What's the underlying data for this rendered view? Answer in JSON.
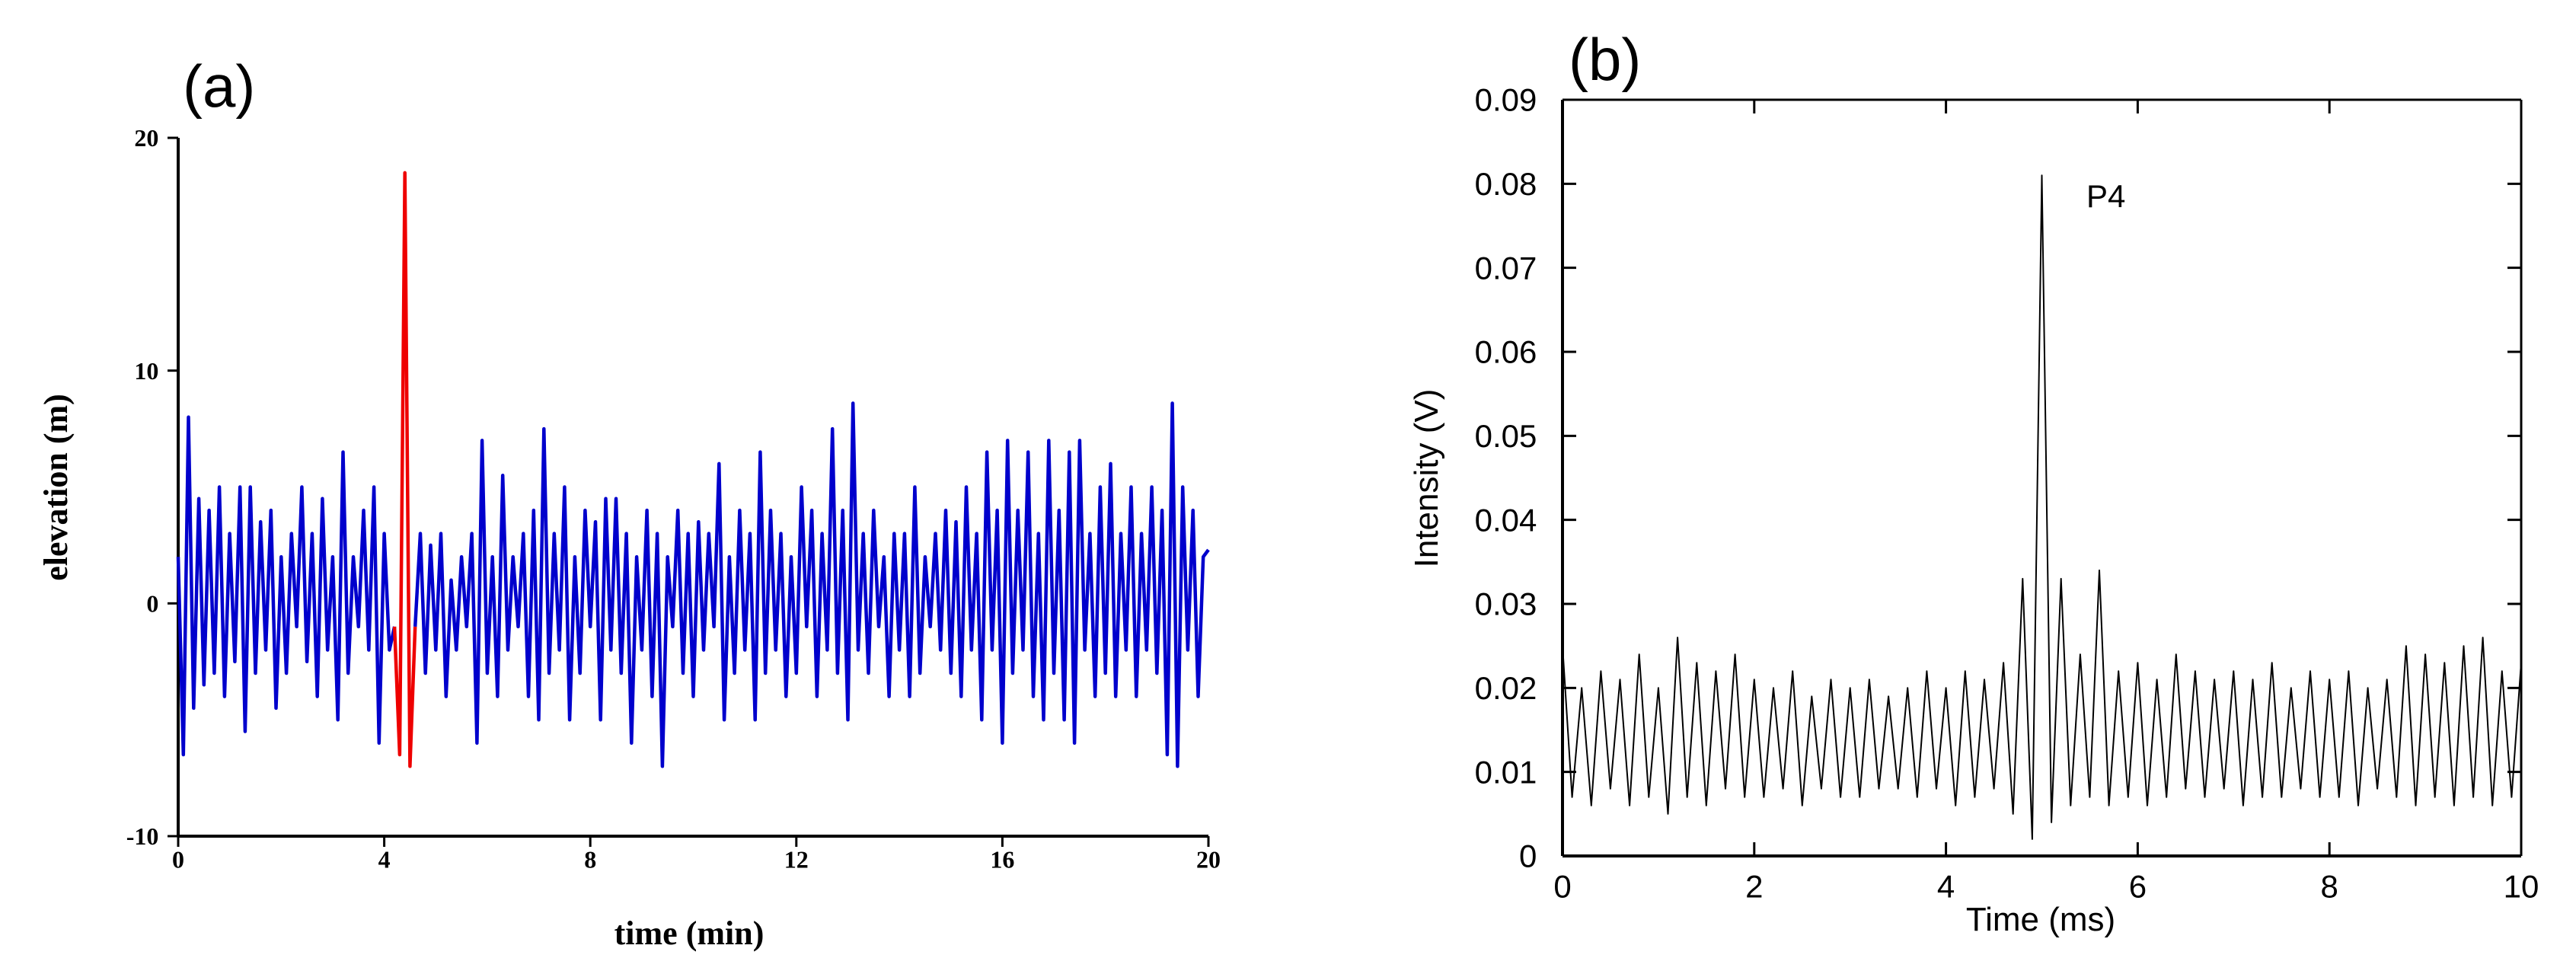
{
  "chart_data": [
    {
      "type": "line",
      "panel_label": "(a)",
      "xlabel": "time (min)",
      "ylabel": "elevation (m)",
      "xlim": [
        0,
        20
      ],
      "xticks": [
        0,
        4,
        8,
        12,
        16,
        20
      ],
      "ylim": [
        -10,
        20
      ],
      "yticks": [
        -10,
        0,
        10,
        20
      ],
      "series": [
        {
          "color": "#0000cc",
          "x": [
            0,
            0.1,
            0.2,
            0.3,
            0.4,
            0.5,
            0.6,
            0.7,
            0.8,
            0.9,
            1,
            1.1,
            1.2,
            1.3,
            1.4,
            1.5,
            1.6,
            1.7,
            1.8,
            1.9,
            2,
            2.1,
            2.2,
            2.3,
            2.4,
            2.5,
            2.6,
            2.7,
            2.8,
            2.9,
            3,
            3.1,
            3.2,
            3.3,
            3.4,
            3.5,
            3.6,
            3.7,
            3.8,
            3.9,
            4,
            4.1,
            4.2,
            4.3,
            4.4,
            4.5,
            4.6,
            4.7,
            4.8,
            4.9,
            5,
            5.1,
            5.2,
            5.3,
            5.4,
            5.5,
            5.6,
            5.7,
            5.8,
            5.9,
            6,
            6.1,
            6.2,
            6.3,
            6.4,
            6.5,
            6.6,
            6.7,
            6.8,
            6.9,
            7,
            7.1,
            7.2,
            7.3,
            7.4,
            7.5,
            7.6,
            7.7,
            7.8,
            7.9,
            8,
            8.1,
            8.2,
            8.3,
            8.4,
            8.5,
            8.6,
            8.7,
            8.8,
            8.9,
            9,
            9.1,
            9.2,
            9.3,
            9.4,
            9.5,
            9.6,
            9.7,
            9.8,
            9.9,
            10,
            10.1,
            10.2,
            10.3,
            10.4,
            10.5,
            10.6,
            10.7,
            10.8,
            10.9,
            11,
            11.1,
            11.2,
            11.3,
            11.4,
            11.5,
            11.6,
            11.7,
            11.8,
            11.9,
            12,
            12.1,
            12.2,
            12.3,
            12.4,
            12.5,
            12.6,
            12.7,
            12.8,
            12.9,
            13,
            13.1,
            13.2,
            13.3,
            13.4,
            13.5,
            13.6,
            13.7,
            13.8,
            13.9,
            14,
            14.1,
            14.2,
            14.3,
            14.4,
            14.5,
            14.6,
            14.7,
            14.8,
            14.9,
            15,
            15.1,
            15.2,
            15.3,
            15.4,
            15.5,
            15.6,
            15.7,
            15.8,
            15.9,
            16,
            16.1,
            16.2,
            16.3,
            16.4,
            16.5,
            16.6,
            16.7,
            16.8,
            16.9,
            17,
            17.1,
            17.2,
            17.3,
            17.4,
            17.5,
            17.6,
            17.7,
            17.8,
            17.9,
            18,
            18.1,
            18.2,
            18.3,
            18.4,
            18.5,
            18.6,
            18.7,
            18.8,
            18.9,
            19,
            19.1,
            19.2,
            19.3,
            19.4,
            19.5,
            19.6,
            19.7,
            19.8,
            19.9,
            20
          ],
          "values": [
            2,
            -6.5,
            8,
            -4.5,
            4.5,
            -3.5,
            4,
            -3,
            5,
            -4,
            3,
            -2.5,
            5,
            -5.5,
            5,
            -3,
            3.5,
            -2,
            4,
            -4.5,
            2,
            -3,
            3,
            -1,
            5,
            -2.5,
            3,
            -4,
            4.5,
            -2,
            2,
            -5,
            6.5,
            -3,
            2,
            -1,
            4,
            -2,
            5,
            -6,
            3,
            -2,
            -1,
            null,
            null,
            null,
            -1,
            3,
            -3,
            2.5,
            -2,
            3,
            -4,
            1,
            -2,
            2,
            -1,
            3,
            -6,
            7,
            -3,
            2,
            -4,
            5.5,
            -2,
            2,
            -1,
            3,
            -4,
            4,
            -5,
            7.5,
            -3,
            3,
            -2,
            5,
            -5,
            2,
            -3,
            4,
            -1,
            3.5,
            -5,
            4.5,
            -2,
            4.5,
            -3,
            3,
            -6,
            2,
            -2,
            4,
            -4,
            3,
            -7,
            2,
            -1,
            4,
            -3,
            3,
            -4,
            3.5,
            -2,
            3,
            -1,
            6,
            -5,
            2,
            -3,
            4,
            -2,
            3,
            -5,
            6.5,
            -3,
            4,
            -2,
            3,
            -4,
            2,
            -3,
            5,
            -1,
            4,
            -4,
            3,
            -2,
            7.5,
            -3,
            4,
            -5,
            8.6,
            -2,
            3,
            -3,
            4,
            -1,
            2,
            -4,
            3,
            -2,
            3,
            -4,
            5,
            -3,
            2,
            -1,
            3,
            -2,
            4,
            -3,
            3.5,
            -4,
            5,
            -2,
            3,
            -5,
            6.5,
            -2,
            4,
            -6,
            7,
            -3,
            4,
            -2,
            6.5,
            -4,
            3,
            -5,
            7,
            -3,
            4,
            -5,
            6.5,
            -6,
            7,
            -2,
            3,
            -4,
            5,
            -3,
            6,
            -4,
            3,
            -2,
            5,
            -4,
            3,
            -2,
            5,
            -3,
            4,
            -6.5,
            8.6,
            -7,
            5,
            -2,
            4,
            -4,
            2,
            2.3
          ]
        },
        {
          "color": "#ee0000",
          "x": [
            4.2,
            4.3,
            4.4,
            4.5,
            4.6
          ],
          "values": [
            -1,
            -6.5,
            18.5,
            -7,
            -1
          ]
        }
      ]
    },
    {
      "type": "line",
      "panel_label": "(b)",
      "xlabel": "Time (ms)",
      "ylabel": "Intensity (V)",
      "annotation": "P4",
      "xlim": [
        0,
        10
      ],
      "xticks": [
        0,
        2,
        4,
        6,
        8,
        10
      ],
      "ylim": [
        0,
        0.09
      ],
      "yticks": [
        0,
        0.01,
        0.02,
        0.03,
        0.04,
        0.05,
        0.06,
        0.07,
        0.08,
        0.09
      ],
      "series": [
        {
          "color": "#000000",
          "x": [
            0,
            0.1,
            0.2,
            0.3,
            0.4,
            0.5,
            0.6,
            0.7,
            0.8,
            0.9,
            1,
            1.1,
            1.2,
            1.3,
            1.4,
            1.5,
            1.6,
            1.7,
            1.8,
            1.9,
            2,
            2.1,
            2.2,
            2.3,
            2.4,
            2.5,
            2.6,
            2.7,
            2.8,
            2.9,
            3,
            3.1,
            3.2,
            3.3,
            3.4,
            3.5,
            3.6,
            3.7,
            3.8,
            3.9,
            4,
            4.1,
            4.2,
            4.3,
            4.4,
            4.5,
            4.6,
            4.7,
            4.8,
            4.9,
            5,
            5.1,
            5.2,
            5.3,
            5.4,
            5.5,
            5.6,
            5.7,
            5.8,
            5.9,
            6,
            6.1,
            6.2,
            6.3,
            6.4,
            6.5,
            6.6,
            6.7,
            6.8,
            6.9,
            7,
            7.1,
            7.2,
            7.3,
            7.4,
            7.5,
            7.6,
            7.7,
            7.8,
            7.9,
            8,
            8.1,
            8.2,
            8.3,
            8.4,
            8.5,
            8.6,
            8.7,
            8.8,
            8.9,
            9,
            9.1,
            9.2,
            9.3,
            9.4,
            9.5,
            9.6,
            9.7,
            9.8,
            9.9,
            10
          ],
          "values": [
            0.025,
            0.007,
            0.02,
            0.006,
            0.022,
            0.008,
            0.021,
            0.006,
            0.024,
            0.007,
            0.02,
            0.005,
            0.026,
            0.007,
            0.023,
            0.006,
            0.022,
            0.008,
            0.024,
            0.007,
            0.021,
            0.007,
            0.02,
            0.008,
            0.022,
            0.006,
            0.019,
            0.008,
            0.021,
            0.007,
            0.02,
            0.007,
            0.021,
            0.008,
            0.019,
            0.008,
            0.02,
            0.007,
            0.022,
            0.008,
            0.02,
            0.006,
            0.022,
            0.007,
            0.021,
            0.008,
            0.023,
            0.005,
            0.033,
            0.002,
            0.081,
            0.004,
            0.033,
            0.006,
            0.024,
            0.007,
            0.034,
            0.006,
            0.022,
            0.007,
            0.023,
            0.006,
            0.021,
            0.007,
            0.024,
            0.008,
            0.022,
            0.007,
            0.021,
            0.008,
            0.022,
            0.006,
            0.021,
            0.007,
            0.023,
            0.007,
            0.02,
            0.008,
            0.022,
            0.007,
            0.021,
            0.007,
            0.022,
            0.006,
            0.02,
            0.008,
            0.021,
            0.007,
            0.025,
            0.006,
            0.024,
            0.007,
            0.023,
            0.006,
            0.025,
            0.007,
            0.026,
            0.006,
            0.022,
            0.007,
            0.023
          ]
        }
      ]
    }
  ]
}
